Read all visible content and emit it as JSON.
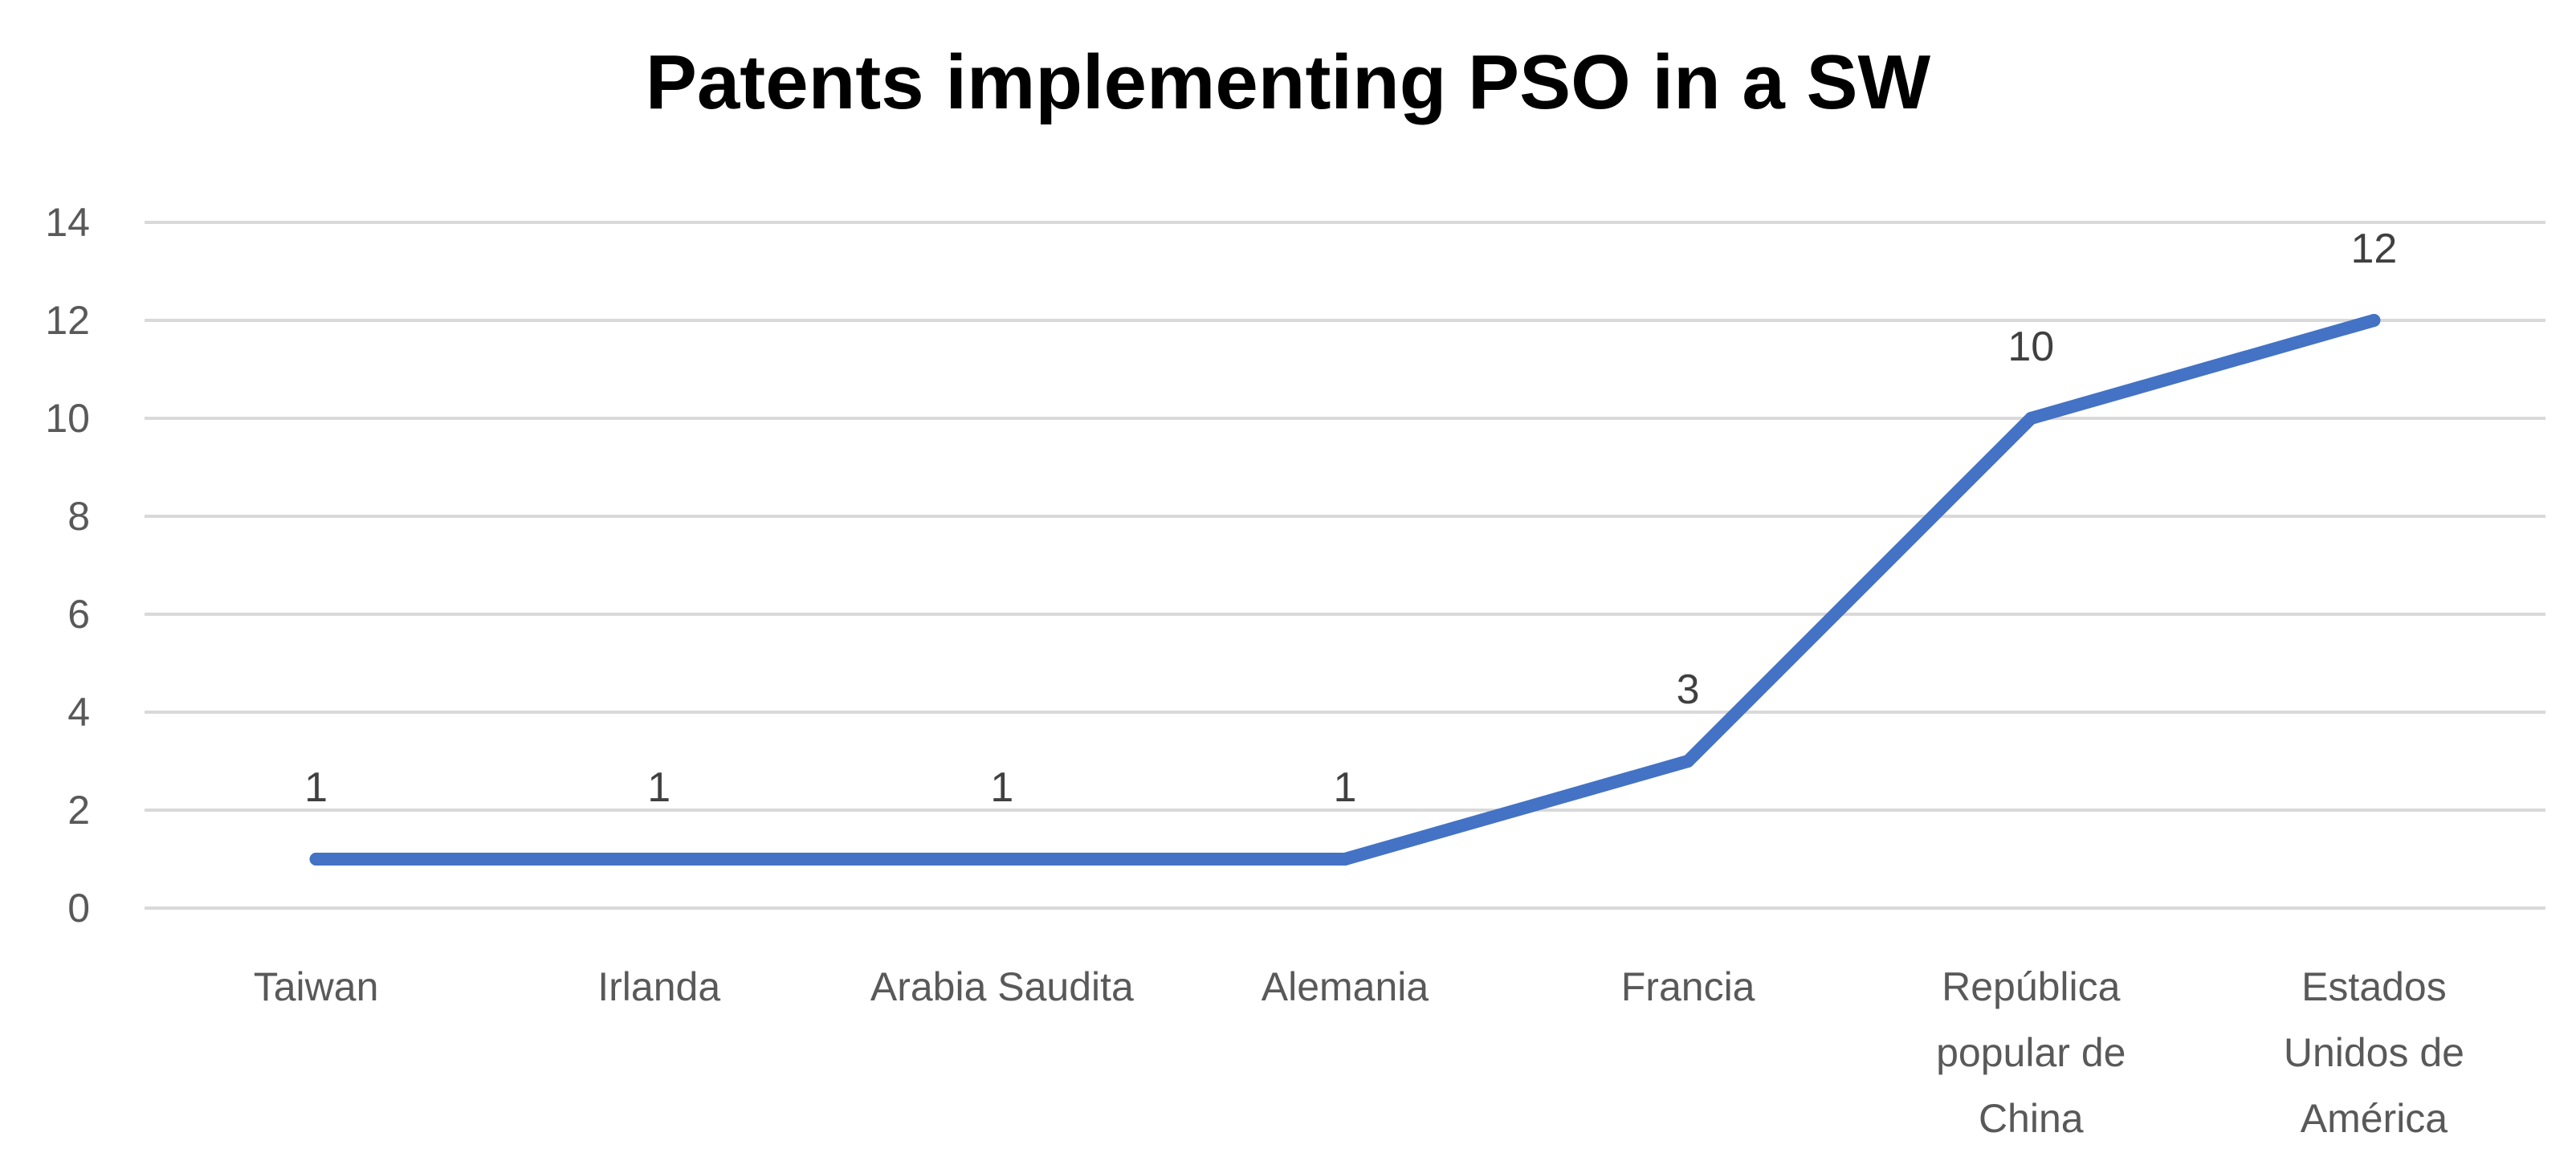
{
  "chart_data": {
    "type": "line",
    "title": "Patents implementing PSO in a SW",
    "xlabel": "",
    "ylabel": "",
    "categories": [
      [
        "Taiwan"
      ],
      [
        "Irlanda"
      ],
      [
        "Arabia Saudita"
      ],
      [
        "Alemania"
      ],
      [
        "Francia"
      ],
      [
        "República",
        "popular de",
        "China"
      ],
      [
        "Estados",
        "Unidos de",
        "América"
      ]
    ],
    "series": [
      {
        "values": [
          1,
          1,
          1,
          1,
          3,
          10,
          12
        ],
        "color": "#4472C4"
      }
    ],
    "data_labels": [
      "1",
      "1",
      "1",
      "1",
      "3",
      "10",
      "12"
    ],
    "yticks": [
      0,
      2,
      4,
      6,
      8,
      10,
      12,
      14
    ],
    "ylim": [
      0,
      14
    ],
    "grid": true,
    "legend": "none",
    "gridline_color": "#d9d9d9"
  }
}
